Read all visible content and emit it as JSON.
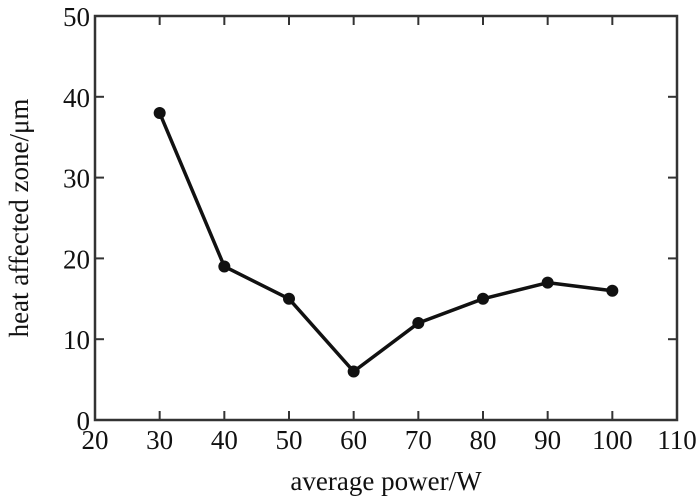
{
  "chart_data": {
    "type": "line",
    "title": "",
    "xlabel": "average power/W",
    "ylabel": "heat affected zone/μm",
    "xlim": [
      20,
      110
    ],
    "ylim": [
      0,
      50
    ],
    "xticks": [
      20,
      30,
      40,
      50,
      60,
      70,
      80,
      90,
      100,
      110
    ],
    "yticks": [
      0,
      10,
      20,
      30,
      40,
      50
    ],
    "grid": false,
    "legend": "none",
    "series": [
      {
        "x": [
          30,
          40,
          50,
          60,
          70,
          80,
          90,
          100
        ],
        "y": [
          38,
          19,
          15,
          6,
          12,
          15,
          17,
          16
        ],
        "color": "#111111",
        "marker": "circle"
      }
    ]
  }
}
